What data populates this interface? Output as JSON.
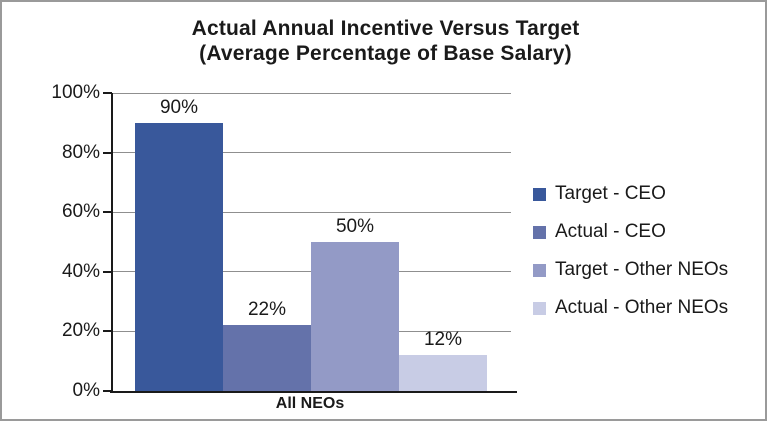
{
  "chart_data": {
    "type": "bar",
    "title_line1": "Actual Annual Incentive Versus Target",
    "title_line2": "(Average Percentage of Base Salary)",
    "categories": [
      "All NEOs"
    ],
    "series": [
      {
        "name": "Target - CEO",
        "values": [
          90
        ],
        "data_label": "90%",
        "color": "#39589B"
      },
      {
        "name": "Actual - CEO",
        "values": [
          22
        ],
        "data_label": "22%",
        "color": "#6472AA"
      },
      {
        "name": "Target - Other NEOs",
        "values": [
          50
        ],
        "data_label": "50%",
        "color": "#939AC6"
      },
      {
        "name": "Actual - Other NEOs",
        "values": [
          12
        ],
        "data_label": "12%",
        "color": "#C8CCE5"
      }
    ],
    "xlabel": "",
    "ylabel": "",
    "ylim": [
      0,
      100
    ],
    "yticks": [
      {
        "value": 0,
        "label": "0%"
      },
      {
        "value": 20,
        "label": "20%"
      },
      {
        "value": 40,
        "label": "40%"
      },
      {
        "value": 60,
        "label": "60%"
      },
      {
        "value": 80,
        "label": "80%"
      },
      {
        "value": 100,
        "label": "100%"
      }
    ],
    "grid": true,
    "legend_position": "right"
  },
  "colors": {
    "grid": "#8F8F8F",
    "axis": "#1A1A1A",
    "text": "#1A1A1A",
    "frame_border": "#9A9A9A",
    "background": "#FFFFFF"
  }
}
